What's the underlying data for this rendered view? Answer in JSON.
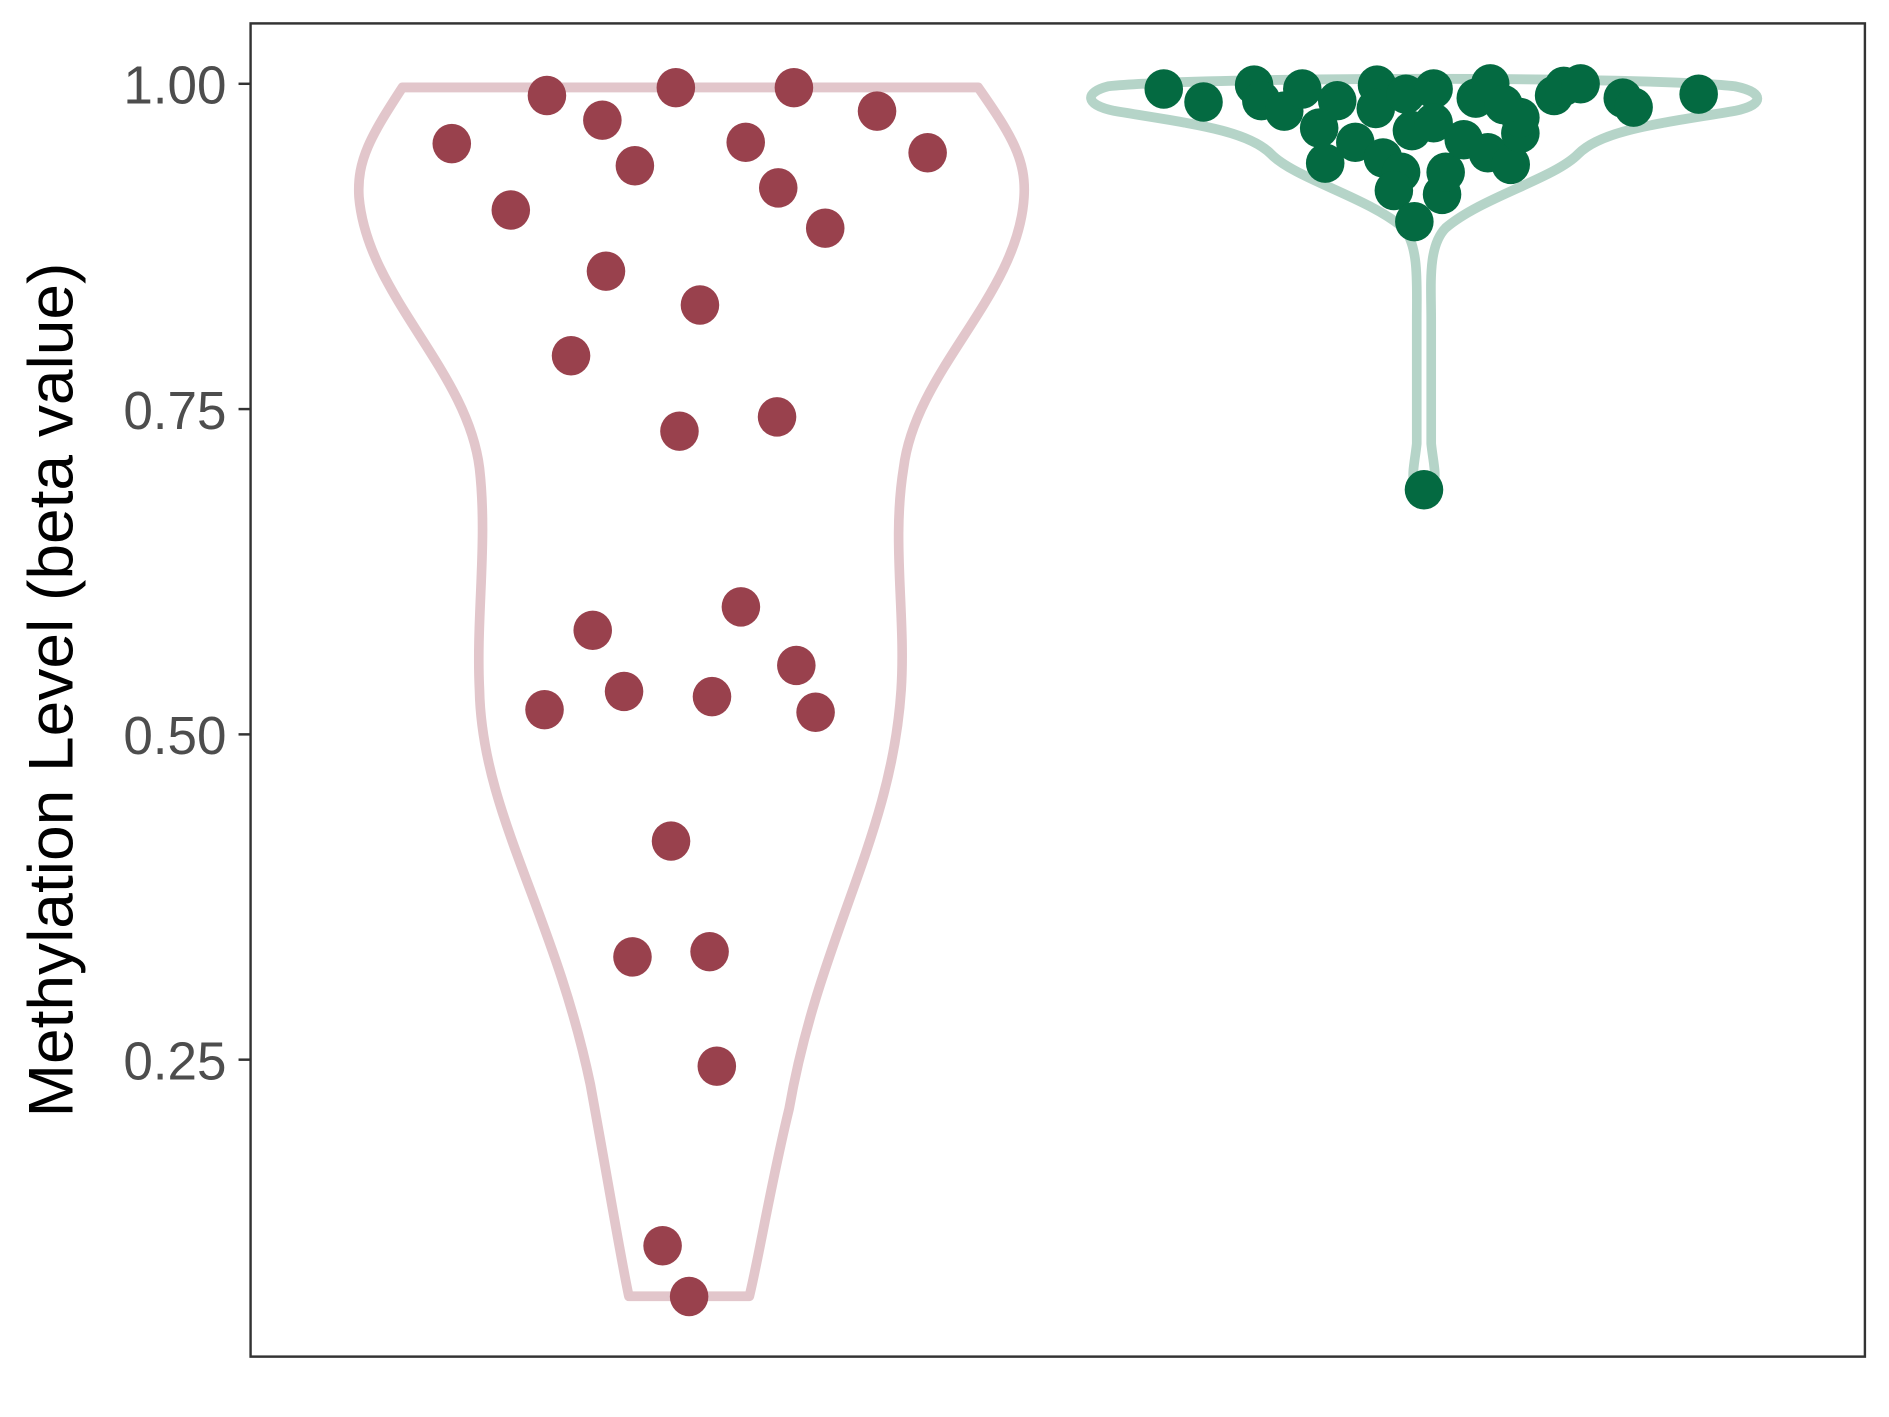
{
  "chart_data": {
    "type": "violin",
    "title": "",
    "xlabel": "",
    "ylabel": "Methylation Level (beta value)",
    "ylim": [
      0.03,
      1.05
    ],
    "yticks": [
      {
        "value": 1.0,
        "label": "1.00"
      },
      {
        "value": 0.75,
        "label": "0.75"
      },
      {
        "value": 0.5,
        "label": "0.50"
      },
      {
        "value": 0.25,
        "label": "0.25"
      }
    ],
    "grid": false,
    "legend": "none",
    "series": [
      {
        "color": "#99414d",
        "violin_color": "#e2c6cb",
        "values": [
          0.954,
          0.903,
          0.991,
          0.972,
          0.937,
          0.856,
          0.791,
          0.997,
          0.955,
          0.997,
          0.92,
          0.979,
          0.947,
          0.889,
          0.83,
          0.733,
          0.744,
          0.58,
          0.598,
          0.519,
          0.533,
          0.529,
          0.553,
          0.517,
          0.418,
          0.329,
          0.333,
          0.245,
          0.107,
          0.068
        ]
      },
      {
        "color": "#046a41",
        "violin_color": "#b5d4c8",
        "values": [
          0.996,
          0.986,
          0.999,
          0.987,
          0.979,
          0.996,
          0.987,
          0.966,
          0.939,
          0.955,
          0.999,
          0.981,
          0.992,
          0.996,
          0.964,
          0.943,
          0.932,
          0.918,
          0.894,
          0.915,
          0.932,
          0.97,
          0.957,
          0.989,
          1.0,
          0.947,
          0.938,
          0.962,
          0.974,
          0.984,
          0.991,
          0.998,
          1.0,
          0.989,
          0.982,
          0.992,
          0.688
        ]
      }
    ]
  }
}
